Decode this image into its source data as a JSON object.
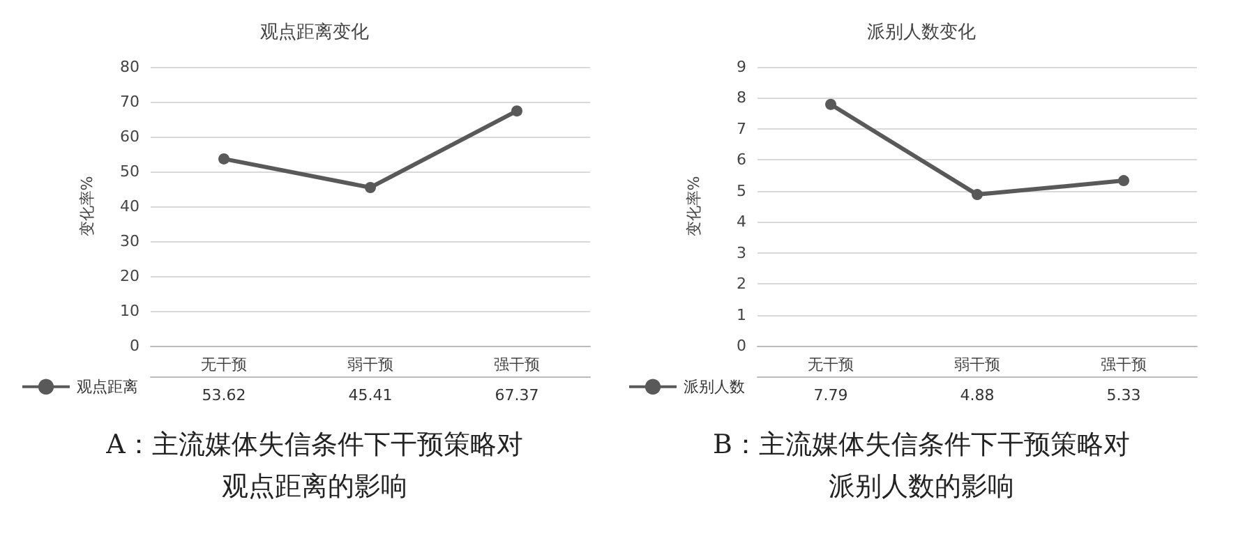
{
  "chart_data": [
    {
      "type": "line",
      "title": "观点距离变化",
      "ylabel": "变化率%",
      "categories": [
        "无干预",
        "弱干预",
        "强干预"
      ],
      "series": [
        {
          "name": "观点距离",
          "color": "#595959",
          "values": [
            53.62,
            45.41,
            67.37
          ]
        }
      ],
      "ylim": [
        0,
        80
      ],
      "yticks": [
        0,
        10,
        20,
        30,
        40,
        50,
        60,
        70,
        80
      ],
      "grid": "y",
      "legend": "bottom left",
      "marker": "circle",
      "line_style": "solid",
      "data_labels": true,
      "annotations": [
        "A：主流媒体失信条件下干预策略对观点距离的影响"
      ]
    },
    {
      "type": "line",
      "title": "派别人数变化",
      "ylabel": "变化率%",
      "categories": [
        "无干预",
        "弱干预",
        "强干预"
      ],
      "series": [
        {
          "name": "派别人数",
          "color": "#595959",
          "values": [
            7.79,
            4.88,
            5.33
          ]
        }
      ],
      "ylim": [
        0,
        9
      ],
      "yticks": [
        0,
        1,
        2,
        3,
        4,
        5,
        6,
        7,
        8,
        9
      ],
      "grid": "y",
      "legend": "bottom left",
      "marker": "circle",
      "line_style": "solid",
      "data_labels": true,
      "annotations": [
        "B：主流媒体失信条件下干预策略对派别人数的影响"
      ]
    }
  ]
}
